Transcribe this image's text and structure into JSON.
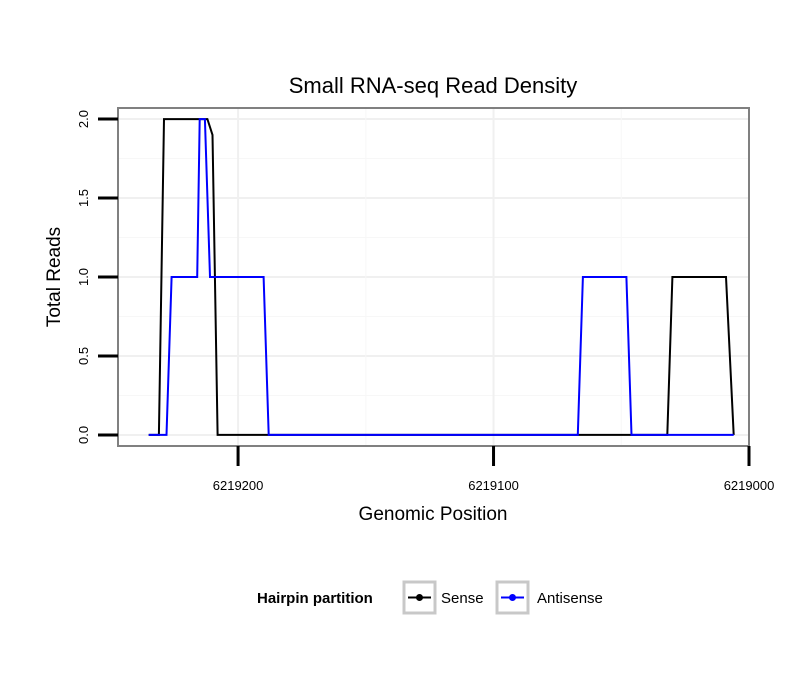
{
  "chart_data": {
    "type": "line",
    "title": "Small RNA-seq Read Density",
    "xlabel": "Genomic Position",
    "ylabel": "Total Reads",
    "x_reversed": true,
    "xlim": [
      6219247,
      6219000
    ],
    "ylim": [
      -0.07,
      2.07
    ],
    "xticks": [
      6219200,
      6219100,
      6219000
    ],
    "xtick_labels": [
      "6219200",
      "6219100",
      "6219000"
    ],
    "yticks": [
      0.0,
      0.5,
      1.0,
      1.5,
      2.0
    ],
    "ytick_labels": [
      "0.0",
      "0.5",
      "1.0",
      "1.5",
      "2.0"
    ],
    "grid": true,
    "legend": {
      "title": "Hairpin partition",
      "position": "bottom"
    },
    "series": [
      {
        "name": "Sense",
        "color": "#000000",
        "x": [
          6219235,
          6219231,
          6219229,
          6219214,
          6219212,
          6219210,
          6219208,
          6219032,
          6219030,
          6219009,
          6219006
        ],
        "y": [
          0,
          0,
          2,
          2,
          2,
          1.9,
          0,
          0,
          1,
          1,
          0
        ]
      },
      {
        "name": "Antisense",
        "color": "#0000ff",
        "x": [
          6219235,
          6219228,
          6219226,
          6219216,
          6219215,
          6219213,
          6219211,
          6219208,
          6219190,
          6219188,
          6219067,
          6219065,
          6219048,
          6219046,
          6219006
        ],
        "y": [
          0,
          0,
          1,
          1,
          2,
          2,
          1,
          1,
          1,
          0,
          0,
          1,
          1,
          0,
          0
        ]
      }
    ]
  }
}
